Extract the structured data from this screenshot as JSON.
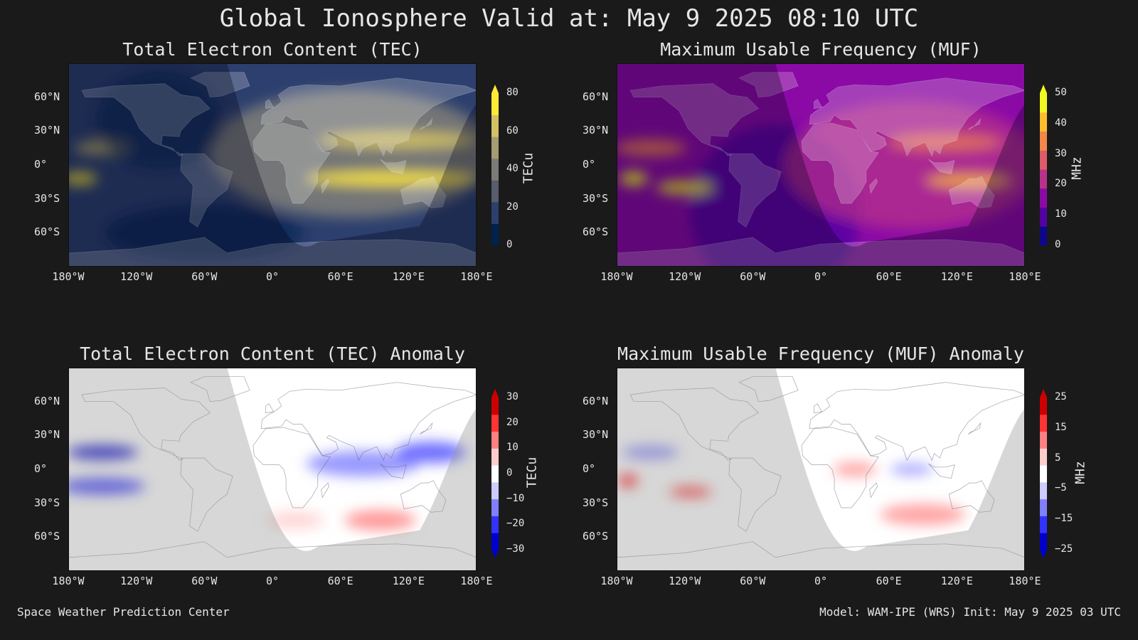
{
  "title": "Global Ionosphere Valid at: May 9 2025 08:10 UTC",
  "footer": {
    "left": "Space Weather Prediction Center",
    "right": "Model: WAM-IPE (WRS) Init: May 9 2025 03 UTC"
  },
  "chart_data": [
    {
      "type": "heatmap",
      "title": "Total Electron Content (TEC)",
      "x_ticks": [
        "180°W",
        "120°W",
        "60°W",
        "0°",
        "60°E",
        "120°E",
        "180°E"
      ],
      "y_ticks": [
        "60°N",
        "30°N",
        "0°",
        "30°S",
        "60°S"
      ],
      "xlim": [
        -180,
        180
      ],
      "ylim": [
        -90,
        90
      ],
      "colorbar": {
        "label": "TECu",
        "ticks": [
          0,
          20,
          40,
          60,
          80
        ],
        "range": [
          0,
          80
        ],
        "extend": "max",
        "colors": [
          "#00224e",
          "#2c3f6e",
          "#575d6d",
          "#7c7b78",
          "#a59c74",
          "#d3c164",
          "#fee838"
        ]
      }
    },
    {
      "type": "heatmap",
      "title": "Maximum Usable Frequency (MUF)",
      "x_ticks": [
        "180°W",
        "120°W",
        "60°W",
        "0°",
        "60°E",
        "120°E",
        "180°E"
      ],
      "y_ticks": [
        "60°N",
        "30°N",
        "0°",
        "30°S",
        "60°S"
      ],
      "xlim": [
        -180,
        180
      ],
      "ylim": [
        -90,
        90
      ],
      "colorbar": {
        "label": "MHz",
        "ticks": [
          0,
          10,
          20,
          30,
          40,
          50
        ],
        "range": [
          0,
          50
        ],
        "extend": "max",
        "colors": [
          "#0d0887",
          "#5302a3",
          "#8b0aa5",
          "#b83289",
          "#db5c68",
          "#f48849",
          "#febd2a",
          "#f0f921"
        ]
      }
    },
    {
      "type": "heatmap",
      "title": "Total Electron Content (TEC) Anomaly",
      "x_ticks": [
        "180°W",
        "120°W",
        "60°W",
        "0°",
        "60°E",
        "120°E",
        "180°E"
      ],
      "y_ticks": [
        "60°N",
        "30°N",
        "0°",
        "30°S",
        "60°S"
      ],
      "xlim": [
        -180,
        180
      ],
      "ylim": [
        -90,
        90
      ],
      "colorbar": {
        "label": "TECu",
        "ticks": [
          30,
          20,
          10,
          0,
          -10,
          -20,
          -30
        ],
        "range": [
          -30,
          30
        ],
        "extend": "both",
        "colors": [
          "#0000cc",
          "#3333ff",
          "#8080ff",
          "#ccccff",
          "#ffffff",
          "#ffcccc",
          "#ff8080",
          "#ff3333",
          "#cc0000"
        ]
      }
    },
    {
      "type": "heatmap",
      "title": "Maximum Usable Frequency (MUF) Anomaly",
      "x_ticks": [
        "180°W",
        "120°W",
        "60°W",
        "0°",
        "60°E",
        "120°E",
        "180°E"
      ],
      "y_ticks": [
        "60°N",
        "30°N",
        "0°",
        "30°S",
        "60°S"
      ],
      "xlim": [
        -180,
        180
      ],
      "ylim": [
        -90,
        90
      ],
      "colorbar": {
        "label": "MHz",
        "ticks": [
          25,
          15,
          5,
          -5,
          -15,
          -25
        ],
        "range": [
          -25,
          25
        ],
        "extend": "both",
        "colors": [
          "#0000cc",
          "#3333ff",
          "#8080ff",
          "#ccccff",
          "#ffffff",
          "#ffcccc",
          "#ff8080",
          "#ff3333",
          "#cc0000"
        ]
      }
    }
  ]
}
